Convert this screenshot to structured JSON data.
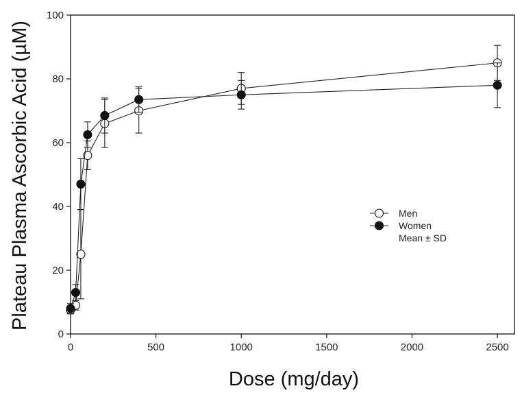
{
  "chart_data": {
    "type": "line",
    "title": "",
    "xlabel": "Dose (mg/day)",
    "ylabel": "Plateau Plasma Ascorbic Acid (µM)",
    "xlim": [
      0,
      2600
    ],
    "ylim": [
      0,
      100
    ],
    "xticks": [
      0,
      500,
      1000,
      1500,
      2000,
      2500
    ],
    "yticks": [
      0,
      20,
      40,
      60,
      80,
      100
    ],
    "grid": false,
    "legend_position": "middle-right",
    "legend_note": "Mean ± SD",
    "series": [
      {
        "name": "Men",
        "marker": "open-circle",
        "x": [
          0,
          30,
          60,
          100,
          200,
          400,
          1000,
          2500
        ],
        "y": [
          7.5,
          9,
          25,
          56,
          66,
          70,
          77,
          85
        ],
        "err": [
          1.2,
          1.5,
          14,
          4.5,
          7.5,
          7,
          5,
          5.5
        ]
      },
      {
        "name": "Women",
        "marker": "filled-circle",
        "x": [
          0,
          30,
          60,
          100,
          200,
          400,
          1000,
          2500
        ],
        "y": [
          8,
          13,
          47,
          62.5,
          68.5,
          73.5,
          75,
          78
        ],
        "err": [
          1.5,
          2.5,
          8,
          4,
          5.5,
          4,
          4.5,
          7
        ]
      }
    ]
  }
}
